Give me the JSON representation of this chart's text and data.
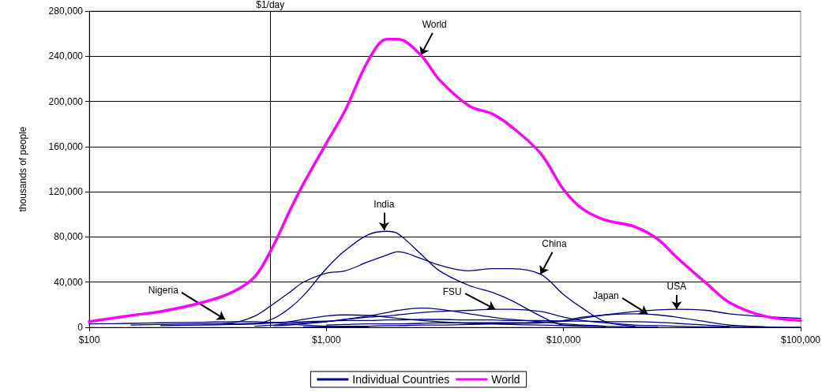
{
  "chart_data": {
    "type": "line",
    "ylabel": "thousands of people",
    "log": "x",
    "grid": "y",
    "legend": "bottom",
    "marker": "none",
    "line_style": "solid",
    "x": [
      100,
      150,
      200,
      300,
      400,
      500,
      600,
      700,
      800,
      1000,
      1200,
      1500,
      1800,
      2000,
      2500,
      3000,
      4000,
      5000,
      6000,
      8000,
      10000,
      12000,
      15000,
      20000,
      25000,
      30000,
      40000,
      50000,
      70000,
      100000
    ],
    "xlim": [
      100,
      100000
    ],
    "xticks": [
      {
        "value": 100,
        "label": "$100"
      },
      {
        "value": 1000,
        "label": "$1,000"
      },
      {
        "value": 10000,
        "label": "$10,000"
      },
      {
        "value": 100000,
        "label": "$100,000"
      }
    ],
    "ylim": [
      0,
      280000
    ],
    "yticks": [
      {
        "value": 0,
        "label": "0"
      },
      {
        "value": 40000,
        "label": "40,000"
      },
      {
        "value": 80000,
        "label": "80,000"
      },
      {
        "value": 120000,
        "label": "120,000"
      },
      {
        "value": 160000,
        "label": "160,000"
      },
      {
        "value": 200000,
        "label": "200,000"
      },
      {
        "value": 240000,
        "label": "240,000"
      },
      {
        "value": 280000,
        "label": "280,000"
      }
    ],
    "series": [
      {
        "name": "Individual Countries",
        "color": "#000080",
        "x": [
          400,
          500,
          600,
          700,
          800,
          1000,
          1200,
          1500,
          1800,
          2000,
          2500,
          3000,
          4000,
          5000,
          6000,
          8000,
          10000,
          12000
        ],
        "values": [
          3000,
          3000,
          8000,
          17000,
          28000,
          52000,
          68000,
          82000,
          85000,
          83000,
          65000,
          50000,
          37000,
          31000,
          24000,
          10000,
          2000,
          1500
        ]
      },
      {
        "color": "#000080",
        "x": [
          300,
          400,
          500,
          600,
          700,
          800,
          1000,
          1200,
          1500,
          1800,
          2000,
          2500,
          3000,
          4000,
          5000,
          6000,
          8000,
          10000,
          12000,
          15000,
          20000
        ],
        "values": [
          3000,
          4000,
          10000,
          21000,
          31000,
          40000,
          48000,
          50000,
          58000,
          64000,
          67000,
          61000,
          55000,
          50000,
          52000,
          52000,
          47000,
          29000,
          17000,
          5000,
          1000
        ]
      },
      {
        "color": "#000080",
        "x": [
          500,
          600,
          700,
          800,
          1000,
          1200,
          1500,
          1800,
          2000,
          2500,
          3000,
          4000,
          5000,
          6000,
          8000,
          10000,
          12000,
          15000,
          20000,
          25000,
          30000,
          40000,
          50000
        ],
        "values": [
          1000,
          2000,
          3000,
          4000,
          5000,
          7000,
          9000,
          10000,
          11000,
          13000,
          14000,
          15000,
          16000,
          16000,
          14000,
          9000,
          6000,
          4000,
          2000,
          1500,
          1000,
          500,
          500
        ]
      },
      {
        "color": "#000080",
        "x": [
          1000,
          1200,
          1500,
          1800,
          2000,
          2500,
          3000,
          4000,
          5000,
          6000,
          8000,
          10000,
          12000,
          15000,
          20000,
          25000,
          30000,
          40000,
          50000,
          70000,
          100000
        ],
        "values": [
          2000,
          2500,
          3000,
          3000,
          3000,
          3500,
          4000,
          4000,
          4000,
          4000,
          4500,
          6000,
          9000,
          11000,
          12000,
          11000,
          9000,
          5000,
          2000,
          500,
          0
        ]
      },
      {
        "color": "#000080",
        "x": [
          800,
          1000,
          1200,
          1500,
          1800,
          2000,
          2500,
          3000,
          4000,
          5000,
          6000,
          8000,
          10000,
          12000,
          15000,
          20000,
          25000,
          30000,
          40000,
          50000,
          70000,
          100000
        ],
        "values": [
          500,
          500,
          1000,
          1000,
          1500,
          1500,
          2000,
          2000,
          2500,
          3000,
          3500,
          4000,
          5500,
          8000,
          11000,
          14000,
          15500,
          16000,
          15000,
          12000,
          9500,
          8000
        ]
      },
      {
        "color": "#000080",
        "x": [
          100,
          150,
          200,
          300,
          400,
          500,
          600,
          700,
          800,
          1000,
          1200,
          1500
        ],
        "values": [
          3000,
          3500,
          4000,
          4500,
          5000,
          5000,
          4000,
          3000,
          2000,
          1000,
          500,
          500
        ]
      },
      {
        "color": "#000080",
        "x": [
          200,
          300,
          400,
          500,
          600,
          700,
          800,
          1000,
          1200,
          1500,
          1800,
          2000,
          2500,
          3000,
          4000,
          5000,
          6000,
          8000,
          10000,
          12000,
          15000
        ],
        "values": [
          1500,
          2000,
          2500,
          3000,
          4000,
          5000,
          7000,
          10000,
          11000,
          10500,
          9000,
          8000,
          6000,
          5000,
          3500,
          3000,
          2500,
          2000,
          1500,
          1000,
          500
        ]
      },
      {
        "color": "#000080",
        "x": [
          600,
          700,
          800,
          1000,
          1200,
          1500,
          1800,
          2000,
          2500,
          3000,
          4000,
          5000,
          6000,
          8000,
          10000,
          12000,
          15000,
          20000,
          25000
        ],
        "values": [
          1500,
          2000,
          3000,
          5000,
          7000,
          10000,
          13000,
          15000,
          17000,
          16000,
          12000,
          9000,
          7000,
          5000,
          3000,
          2000,
          1000,
          500,
          0
        ]
      },
      {
        "color": "#000080",
        "x": [
          150,
          200,
          300,
          400,
          500,
          600,
          700,
          800,
          1000,
          1200,
          1500,
          1800,
          2000,
          2500,
          3000,
          4000,
          5000,
          6000,
          8000,
          10000,
          12000,
          15000,
          20000,
          25000,
          30000,
          40000,
          50000,
          70000
        ],
        "values": [
          2000,
          2500,
          3000,
          3000,
          3500,
          4000,
          4500,
          5000,
          5500,
          6000,
          6000,
          6500,
          6500,
          7000,
          7000,
          6500,
          6500,
          6000,
          6000,
          5500,
          5500,
          5000,
          5000,
          4500,
          3500,
          2000,
          1000,
          500
        ]
      },
      {
        "name": "World",
        "color": "#ff00ff",
        "values": [
          5000,
          10500,
          14000,
          22000,
          31000,
          45000,
          73000,
          103000,
          127000,
          163000,
          192000,
          236000,
          255000,
          255000,
          241000,
          219000,
          196000,
          189000,
          178000,
          154000,
          122000,
          105000,
          95000,
          89000,
          78000,
          62000,
          39000,
          22000,
          10000,
          6000
        ]
      }
    ],
    "ref_lines": [
      {
        "axis": "x",
        "value": 580,
        "label": "$1/day",
        "color": "#000000"
      }
    ],
    "annotations": [
      {
        "text": "World",
        "x": 2500,
        "y": 241000
      },
      {
        "text": "India",
        "x": 1750,
        "y": 86000
      },
      {
        "text": "China",
        "x": 8000,
        "y": 47000
      },
      {
        "text": "FSU",
        "x": 5150,
        "y": 16000
      },
      {
        "text": "Japan",
        "x": 22600,
        "y": 12000
      },
      {
        "text": "USA",
        "x": 30000,
        "y": 16000
      },
      {
        "text": "Nigeria",
        "x": 374,
        "y": 7000
      }
    ]
  }
}
